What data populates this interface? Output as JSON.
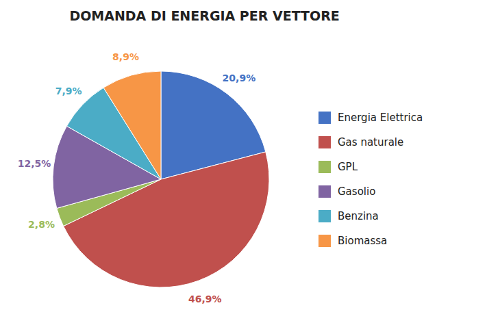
{
  "chart_data": {
    "type": "pie",
    "title": "DOMANDA DI ENERGIA PER VETTORE",
    "categories": [
      "Energia Elettrica",
      "Gas naturale",
      "GPL",
      "Gasolio",
      "Benzina",
      "Biomassa"
    ],
    "values": [
      20.9,
      46.9,
      2.8,
      12.5,
      7.9,
      8.9
    ],
    "value_labels": [
      "20,9%",
      "46,9%",
      "2,8%",
      "12,5%",
      "7,9%",
      "8,9%"
    ],
    "colors": [
      "#4472C4",
      "#C0504D",
      "#9BBB59",
      "#8064A2",
      "#4BACC6",
      "#F79646"
    ],
    "data_labels": true,
    "legend": "right"
  }
}
